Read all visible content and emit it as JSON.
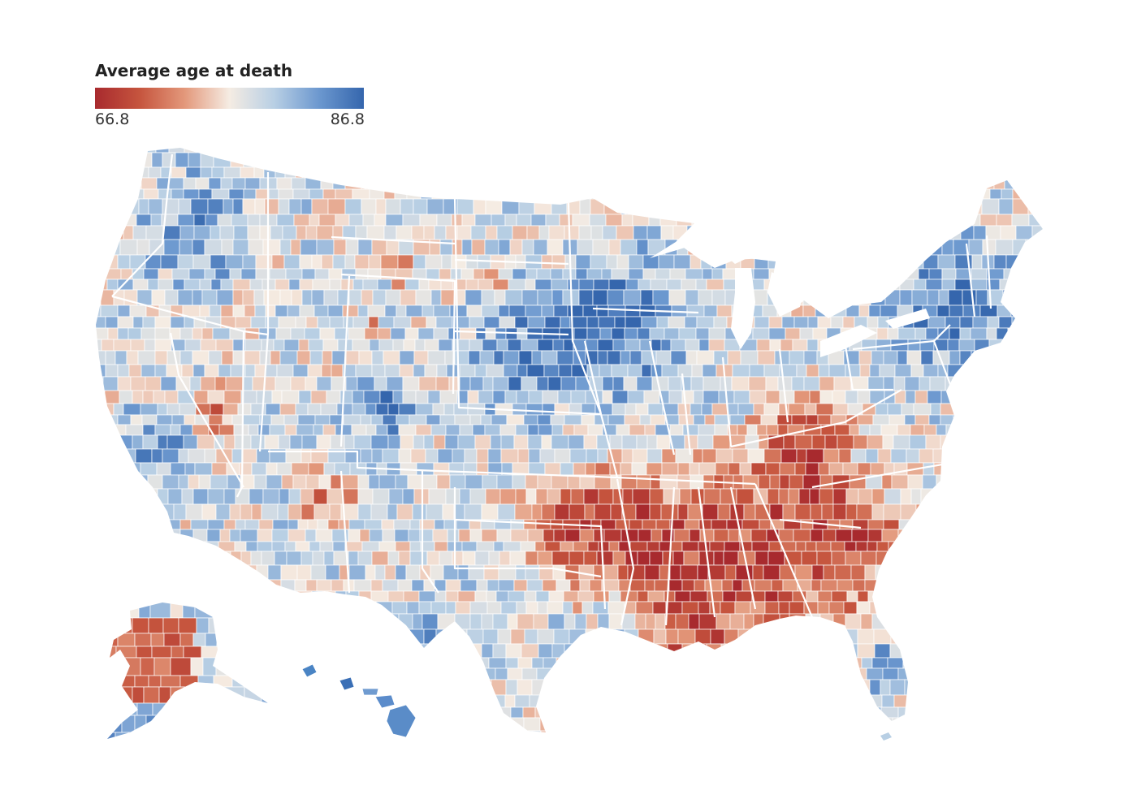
{
  "legend": {
    "title": "Average age at death",
    "min_label": "66.8",
    "max_label": "86.8",
    "min_value": 66.8,
    "max_value": 86.8,
    "color_stops": [
      "#a82a2e",
      "#c6553e",
      "#e3987b",
      "#f5ece3",
      "#b8cfe4",
      "#6c98cf",
      "#3566ad"
    ]
  },
  "map": {
    "projection": "albers-usa-like",
    "regions_shown": [
      "contiguous-us",
      "alaska",
      "hawaii"
    ],
    "unit": "county",
    "regional_pattern": [
      {
        "region": "Southeast / Deep South",
        "tendency": "low"
      },
      {
        "region": "Appalachia",
        "tendency": "low"
      },
      {
        "region": "Great Plains / Midwest",
        "tendency": "high"
      },
      {
        "region": "Northeast",
        "tendency": "high"
      },
      {
        "region": "Pacific coast",
        "tendency": "high"
      },
      {
        "region": "Alaska interior / west",
        "tendency": "low"
      }
    ]
  }
}
